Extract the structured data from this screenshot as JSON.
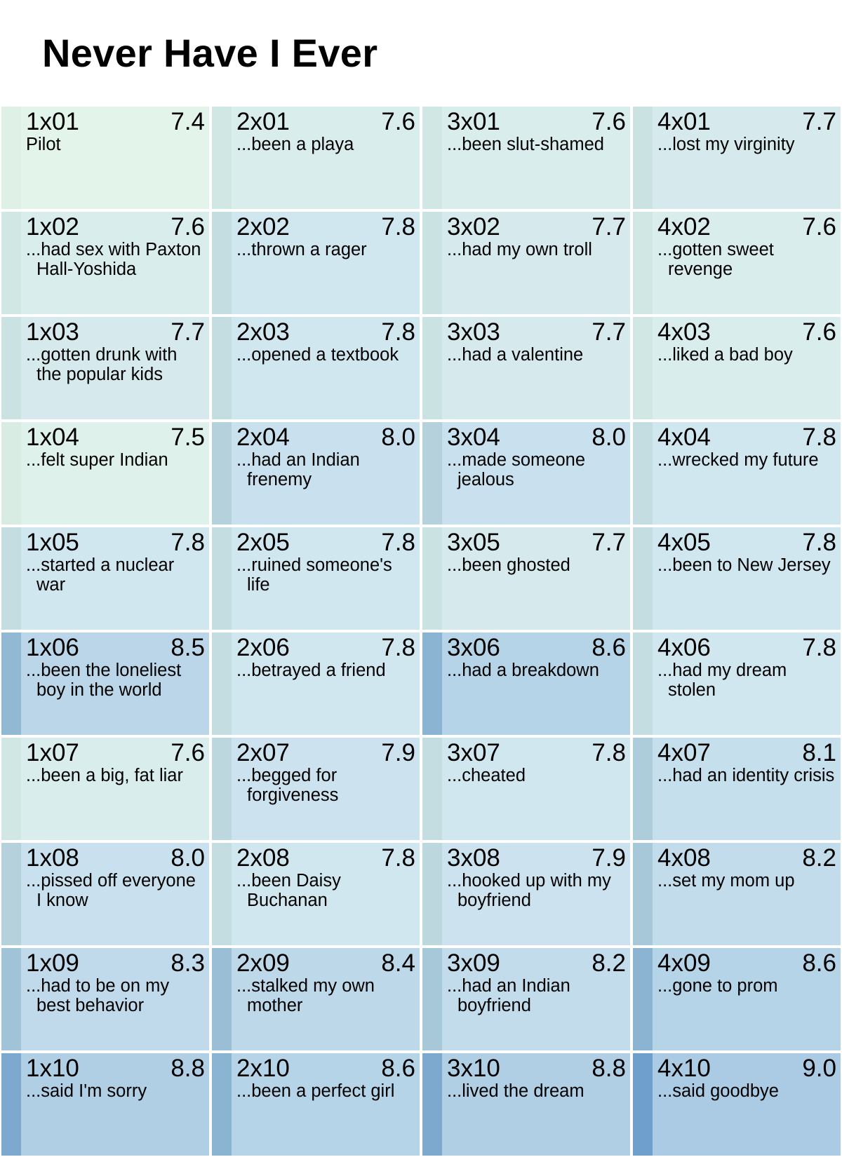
{
  "chart_data": {
    "type": "table",
    "title": "Never Have I Ever",
    "colors": {
      "low": "#e3f4ea",
      "mid": "#cfe5f0",
      "high": "#8cb6d8",
      "stripe_low": "#dff1e6",
      "stripe_high": "#6f9fcc"
    },
    "seasons": [
      {
        "season": 1,
        "episodes": [
          {
            "code": "1x01",
            "rating": "7.4",
            "title": "Pilot"
          },
          {
            "code": "1x02",
            "rating": "7.6",
            "title": "...had sex with Paxton Hall-Yoshida"
          },
          {
            "code": "1x03",
            "rating": "7.7",
            "title": "...gotten drunk with the popular kids"
          },
          {
            "code": "1x04",
            "rating": "7.5",
            "title": "...felt super Indian"
          },
          {
            "code": "1x05",
            "rating": "7.8",
            "title": "...started a nuclear war"
          },
          {
            "code": "1x06",
            "rating": "8.5",
            "title": "...been the loneliest boy in the world"
          },
          {
            "code": "1x07",
            "rating": "7.6",
            "title": "...been a big, fat liar"
          },
          {
            "code": "1x08",
            "rating": "8.0",
            "title": "...pissed off everyone I know"
          },
          {
            "code": "1x09",
            "rating": "8.3",
            "title": "...had to be on my best behavior"
          },
          {
            "code": "1x10",
            "rating": "8.8",
            "title": "...said I'm sorry"
          }
        ]
      },
      {
        "season": 2,
        "episodes": [
          {
            "code": "2x01",
            "rating": "7.6",
            "title": "...been a playa"
          },
          {
            "code": "2x02",
            "rating": "7.8",
            "title": "...thrown a rager"
          },
          {
            "code": "2x03",
            "rating": "7.8",
            "title": "...opened a textbook"
          },
          {
            "code": "2x04",
            "rating": "8.0",
            "title": "...had an Indian frenemy"
          },
          {
            "code": "2x05",
            "rating": "7.8",
            "title": "...ruined someone's life"
          },
          {
            "code": "2x06",
            "rating": "7.8",
            "title": "...betrayed a friend"
          },
          {
            "code": "2x07",
            "rating": "7.9",
            "title": "...begged for forgiveness"
          },
          {
            "code": "2x08",
            "rating": "7.8",
            "title": "...been Daisy Buchanan"
          },
          {
            "code": "2x09",
            "rating": "8.4",
            "title": "...stalked my own mother"
          },
          {
            "code": "2x10",
            "rating": "8.6",
            "title": "...been a perfect girl"
          }
        ]
      },
      {
        "season": 3,
        "episodes": [
          {
            "code": "3x01",
            "rating": "7.6",
            "title": "...been slut-shamed"
          },
          {
            "code": "3x02",
            "rating": "7.7",
            "title": "...had my own troll"
          },
          {
            "code": "3x03",
            "rating": "7.7",
            "title": "...had a valentine"
          },
          {
            "code": "3x04",
            "rating": "8.0",
            "title": "...made someone jealous"
          },
          {
            "code": "3x05",
            "rating": "7.7",
            "title": "...been ghosted"
          },
          {
            "code": "3x06",
            "rating": "8.6",
            "title": "...had a breakdown"
          },
          {
            "code": "3x07",
            "rating": "7.8",
            "title": "...cheated"
          },
          {
            "code": "3x08",
            "rating": "7.9",
            "title": "...hooked up with my boyfriend"
          },
          {
            "code": "3x09",
            "rating": "8.2",
            "title": "...had an Indian boyfriend"
          },
          {
            "code": "3x10",
            "rating": "8.8",
            "title": "...lived the dream"
          }
        ]
      },
      {
        "season": 4,
        "episodes": [
          {
            "code": "4x01",
            "rating": "7.7",
            "title": "...lost my virginity"
          },
          {
            "code": "4x02",
            "rating": "7.6",
            "title": "...gotten sweet revenge"
          },
          {
            "code": "4x03",
            "rating": "7.6",
            "title": "...liked a bad boy"
          },
          {
            "code": "4x04",
            "rating": "7.8",
            "title": "...wrecked my future"
          },
          {
            "code": "4x05",
            "rating": "7.8",
            "title": "...been to New Jersey"
          },
          {
            "code": "4x06",
            "rating": "7.8",
            "title": "...had my dream stolen"
          },
          {
            "code": "4x07",
            "rating": "8.1",
            "title": "...had an identity crisis"
          },
          {
            "code": "4x08",
            "rating": "8.2",
            "title": "...set my mom up"
          },
          {
            "code": "4x09",
            "rating": "8.6",
            "title": "...gone to prom"
          },
          {
            "code": "4x10",
            "rating": "9.0",
            "title": "...said goodbye"
          }
        ]
      }
    ]
  }
}
